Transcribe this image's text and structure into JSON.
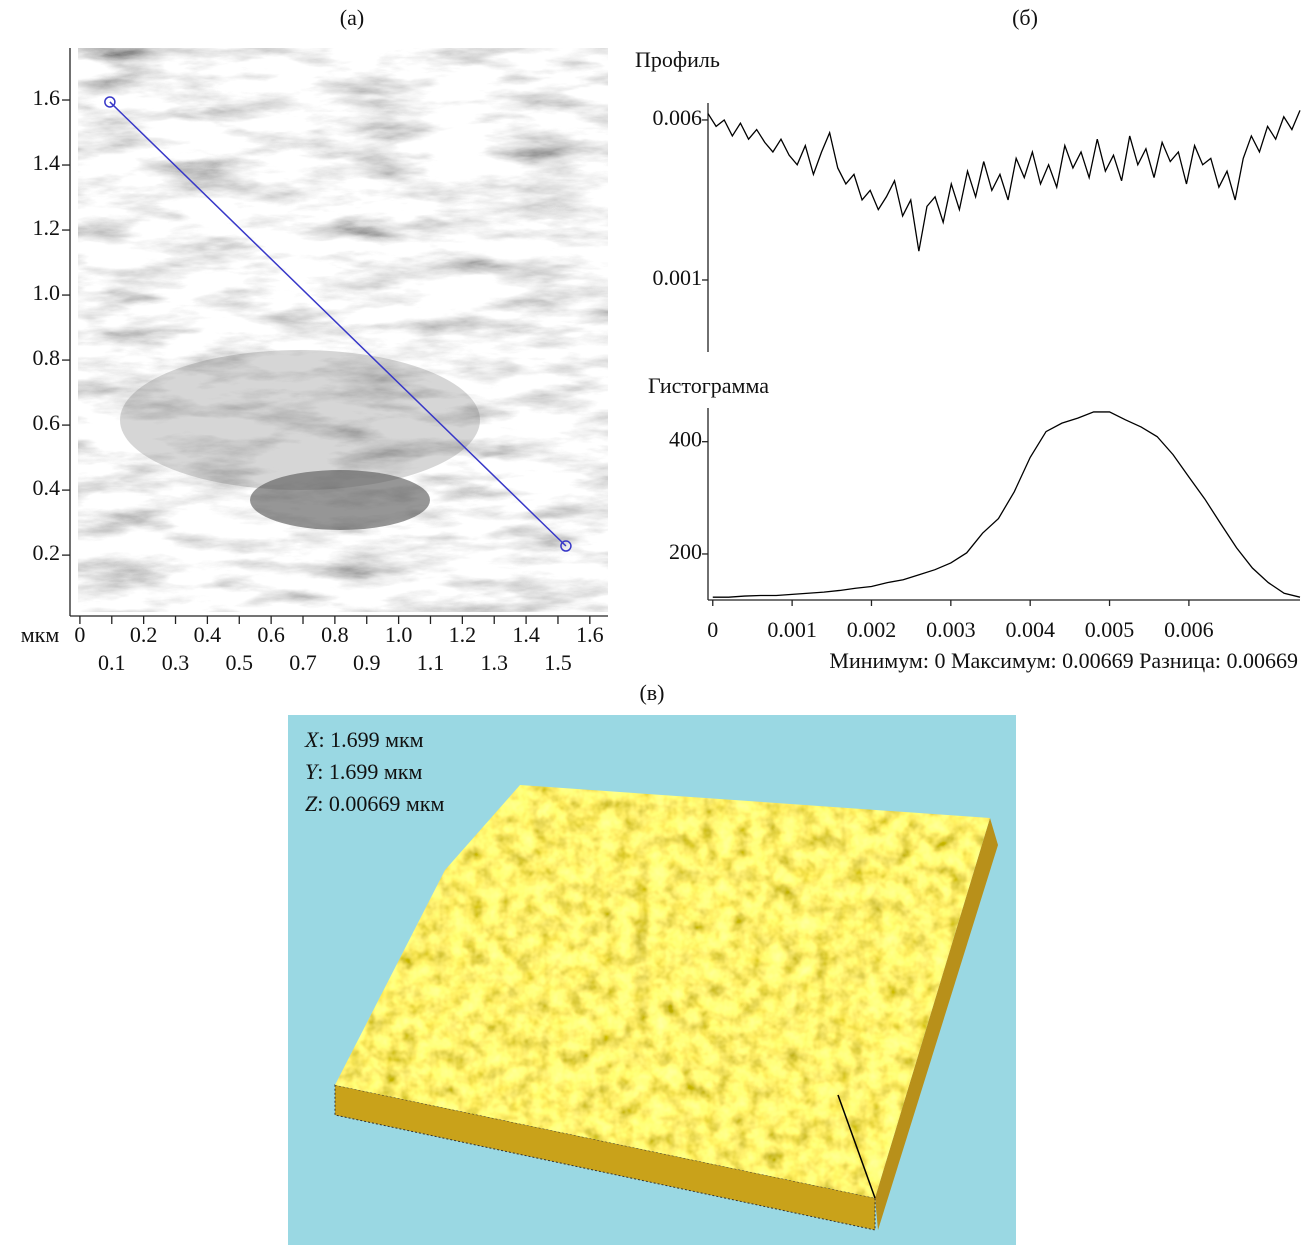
{
  "chart_data": [
    {
      "type": "image",
      "label": "(а)",
      "x_label": "мкм",
      "xlim": [
        -0.006,
        1.657
      ],
      "ylim": [
        0.025,
        1.76
      ],
      "xticks": [
        0,
        0.1,
        0.2,
        0.3,
        0.4,
        0.5,
        0.6,
        0.7,
        0.8,
        0.9,
        {
          "value": 1,
          "label": "1.0"
        },
        1.1,
        1.2,
        1.3,
        1.4,
        1.5,
        1.6
      ],
      "yticks": [
        0.2,
        0.4,
        0.6,
        0.8,
        {
          "value": 1,
          "label": "1.0"
        },
        1.2,
        1.4,
        1.6
      ],
      "profile_line": {
        "x": [
          0.094,
          1.525
        ],
        "y": [
          1.594,
          0.228
        ]
      },
      "line_color": "#3838c8"
    },
    {
      "type": "line",
      "label": "(б)",
      "title": "Профиль",
      "color": "#000000",
      "values": [
        0.0062,
        0.0058,
        0.006,
        0.0055,
        0.0059,
        0.0054,
        0.0057,
        0.0053,
        0.005,
        0.0054,
        0.0049,
        0.0046,
        0.0052,
        0.0043,
        0.005,
        0.0056,
        0.0045,
        0.004,
        0.0043,
        0.0035,
        0.0038,
        0.0032,
        0.0036,
        0.0041,
        0.003,
        0.0035,
        0.0019,
        0.0033,
        0.0036,
        0.0028,
        0.004,
        0.0032,
        0.0044,
        0.0036,
        0.0047,
        0.0038,
        0.0043,
        0.0035,
        0.0048,
        0.0042,
        0.005,
        0.004,
        0.0046,
        0.0039,
        0.0052,
        0.0045,
        0.005,
        0.0042,
        0.0054,
        0.0044,
        0.0049,
        0.0041,
        0.0055,
        0.0046,
        0.0051,
        0.0042,
        0.0053,
        0.0047,
        0.005,
        0.004,
        0.0052,
        0.0046,
        0.0048,
        0.0039,
        0.0044,
        0.0035,
        0.0048,
        0.0055,
        0.005,
        0.0058,
        0.0054,
        0.0061,
        0.0057,
        0.0063
      ],
      "ylim": [
        -0.00125,
        0.00653
      ],
      "yticks": [
        0.006,
        0.001
      ]
    },
    {
      "type": "line",
      "title": "Гистограмма",
      "color": "#000000",
      "x": [
        0,
        0.0002,
        0.0004,
        0.0006,
        0.0008,
        0.001,
        0.0012,
        0.0014,
        0.0016,
        0.0018,
        0.002,
        0.0022,
        0.0024,
        0.0026,
        0.0028,
        0.003,
        0.0032,
        0.0034,
        0.0036,
        0.0038,
        0.004,
        0.0042,
        0.0044,
        0.0046,
        0.0048,
        0.005,
        0.0052,
        0.0054,
        0.0056,
        0.0058,
        0.006,
        0.0062,
        0.0064,
        0.0066,
        0.0068,
        0.007,
        0.0072,
        0.0074
      ],
      "values": [
        123,
        123,
        125,
        126,
        126,
        128,
        130,
        132,
        135,
        139,
        142,
        149,
        154,
        163,
        172,
        184,
        202,
        237,
        263,
        311,
        372,
        418,
        433,
        442,
        453,
        453,
        439,
        426,
        409,
        377,
        337,
        298,
        254,
        211,
        175,
        149,
        130,
        123
      ],
      "xlim": [
        -6e-05,
        0.0074
      ],
      "ylim": [
        118,
        460
      ],
      "xticks": [
        0,
        0.001,
        0.002,
        0.003,
        0.004,
        0.005,
        0.006
      ],
      "yticks": [
        200,
        400
      ],
      "stats": "Минимум: 0 Максимум: 0.00669 Разница: 0.00669"
    },
    {
      "type": "surface",
      "label": "(в)",
      "background": "#9ad8e3",
      "annotations": [
        {
          "axis": "X",
          "text": ": 1.699 мкм"
        },
        {
          "axis": "Y",
          "text": ": 1.699 мкм"
        },
        {
          "axis": "Z",
          "text": ": 0.00669 мкм"
        }
      ]
    }
  ]
}
